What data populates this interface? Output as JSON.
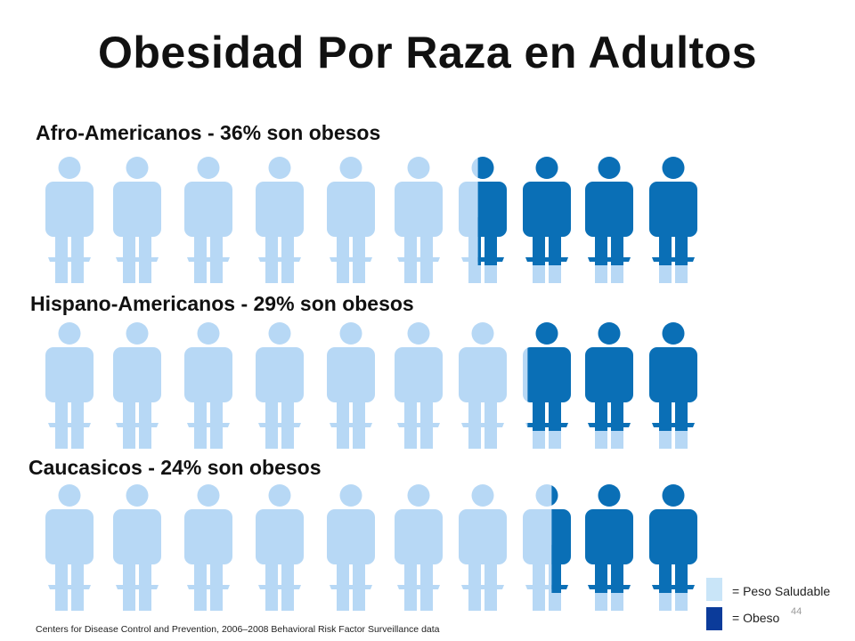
{
  "title": "Obesidad Por Raza en Adultos",
  "colors": {
    "healthy": "#b7d8f5",
    "obese": "#0a6fb6",
    "legend_obese": "#0b3b9a",
    "legend_healthy": "#c9e5f8"
  },
  "chart_data": {
    "type": "pictograph",
    "figures_per_row": 10,
    "rows": [
      {
        "label": "Afro-Americanos - 36% son obesos",
        "obese_percent": 36
      },
      {
        "label": "Hispano-Americanos - 29% son obesos",
        "obese_percent": 29
      },
      {
        "label": "Caucasicos - 24% son obesos",
        "obese_percent": 24
      }
    ]
  },
  "legend": {
    "healthy_label": "= Peso Saludable",
    "obese_label": "= Obeso"
  },
  "page_number": "44",
  "source": "Centers for Disease Control and Prevention, 2006–2008 Behavioral Risk Factor Surveillance data"
}
